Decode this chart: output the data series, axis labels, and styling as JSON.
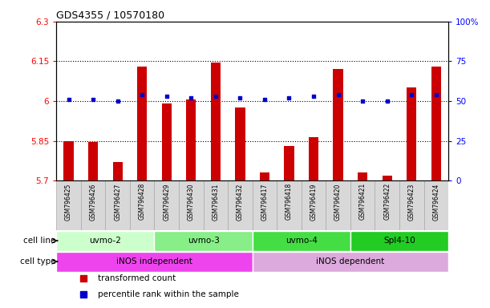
{
  "title": "GDS4355 / 10570180",
  "samples": [
    "GSM796425",
    "GSM796426",
    "GSM796427",
    "GSM796428",
    "GSM796429",
    "GSM796430",
    "GSM796431",
    "GSM796432",
    "GSM796417",
    "GSM796418",
    "GSM796419",
    "GSM796420",
    "GSM796421",
    "GSM796422",
    "GSM796423",
    "GSM796424"
  ],
  "transformed_count": [
    5.85,
    5.845,
    5.77,
    6.13,
    5.99,
    6.005,
    6.145,
    5.975,
    5.73,
    5.83,
    5.865,
    6.12,
    5.73,
    5.72,
    6.05,
    6.13
  ],
  "percentile_rank": [
    51,
    51,
    50,
    54,
    53,
    52,
    53,
    52,
    51,
    52,
    53,
    54,
    50,
    50,
    54,
    54
  ],
  "ylim_left": [
    5.7,
    6.3
  ],
  "ylim_right": [
    0,
    100
  ],
  "yticks_left": [
    5.7,
    5.85,
    6.0,
    6.15,
    6.3
  ],
  "yticks_left_labels": [
    "5.7",
    "5.85",
    "6",
    "6.15",
    "6.3"
  ],
  "yticks_right": [
    0,
    25,
    50,
    75,
    100
  ],
  "yticks_right_labels": [
    "0",
    "25",
    "50",
    "75",
    "100%"
  ],
  "hlines": [
    5.85,
    6.0,
    6.15
  ],
  "bar_color": "#cc0000",
  "dot_color": "#0000cc",
  "bar_width": 0.4,
  "cell_line_groups": [
    {
      "label": "uvmo-2",
      "start": 0,
      "end": 4,
      "color": "#ccffcc"
    },
    {
      "label": "uvmo-3",
      "start": 4,
      "end": 8,
      "color": "#88ee88"
    },
    {
      "label": "uvmo-4",
      "start": 8,
      "end": 12,
      "color": "#44dd44"
    },
    {
      "label": "Spl4-10",
      "start": 12,
      "end": 16,
      "color": "#22cc22"
    }
  ],
  "cell_type_groups": [
    {
      "label": "iNOS independent",
      "start": 0,
      "end": 8,
      "color": "#ee44ee"
    },
    {
      "label": "iNOS dependent",
      "start": 8,
      "end": 16,
      "color": "#ddaadd"
    }
  ],
  "cell_line_label": "cell line",
  "cell_type_label": "cell type",
  "legend_items": [
    {
      "label": "transformed count",
      "color": "#cc0000"
    },
    {
      "label": "percentile rank within the sample",
      "color": "#0000cc"
    }
  ],
  "sample_box_color": "#d8d8d8",
  "sample_box_edge_color": "#aaaaaa"
}
